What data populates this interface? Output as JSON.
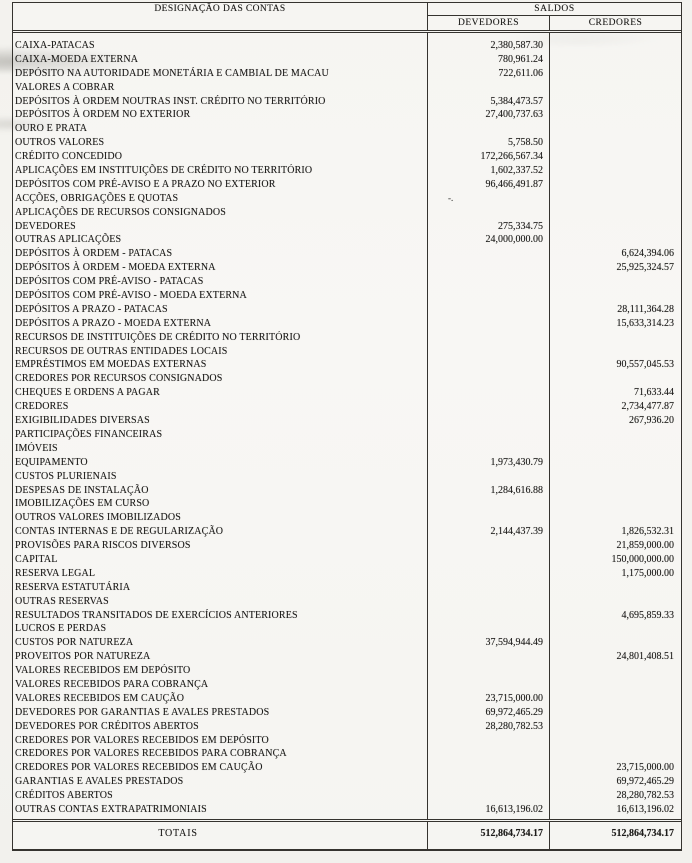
{
  "header": {
    "designation": "DESIGNAÇÃO DAS CONTAS",
    "saldos": "SALDOS",
    "devedores": "DEVEDORES",
    "credores": "CREDORES"
  },
  "rows": [
    {
      "name": "CAIXA-PATACAS",
      "dev": "2,380,587.30",
      "cred": ""
    },
    {
      "name": "CAIXA-MOEDA EXTERNA",
      "dev": "780,961.24",
      "cred": ""
    },
    {
      "name": "DEPÓSITO NA AUTORIDADE MONETÁRIA E CAMBIAL DE MACAU",
      "dev": "722,611.06",
      "cred": ""
    },
    {
      "name": "VALORES A COBRAR",
      "dev": "",
      "cred": ""
    },
    {
      "name": "DEPÓSITOS À ORDEM NOUTRAS INST. CRÉDITO NO TERRITÓRIO",
      "dev": "5,384,473.57",
      "cred": ""
    },
    {
      "name": "DEPÓSITOS À ORDEM NO EXTERIOR",
      "dev": "27,400,737.63",
      "cred": ""
    },
    {
      "name": "OURO E PRATA",
      "dev": "",
      "cred": ""
    },
    {
      "name": "OUTROS VALORES",
      "dev": "5,758.50",
      "cred": ""
    },
    {
      "name": "CRÉDITO CONCEDIDO",
      "dev": "172,266,567.34",
      "cred": ""
    },
    {
      "name": "APLICAÇÕES EM INSTITUIÇÕES DE CRÉDITO NO TERRITÓRIO",
      "dev": "1,602,337.52",
      "cred": ""
    },
    {
      "name": "DEPÓSITOS COM PRÉ-AVISO E A PRAZO NO EXTERIOR",
      "dev": "96,466,491.87",
      "cred": ""
    },
    {
      "name": "ACÇÕES, OBRIGAÇÕES E QUOTAS",
      "dev": "-.",
      "cred": ""
    },
    {
      "name": "APLICAÇÕES DE RECURSOS CONSIGNADOS",
      "dev": "",
      "cred": ""
    },
    {
      "name": "DEVEDORES",
      "dev": "275,334.75",
      "cred": ""
    },
    {
      "name": "OUTRAS APLICAÇÕES",
      "dev": "24,000,000.00",
      "cred": ""
    },
    {
      "name": "DEPÓSITOS À ORDEM - PATACAS",
      "dev": "",
      "cred": "6,624,394.06"
    },
    {
      "name": "DEPÓSITOS À ORDEM - MOEDA EXTERNA",
      "dev": "",
      "cred": "25,925,324.57"
    },
    {
      "name": "DEPÓSITOS COM PRÉ-AVISO - PATACAS",
      "dev": "",
      "cred": ""
    },
    {
      "name": "DEPÓSITOS COM PRÉ-AVISO - MOEDA EXTERNA",
      "dev": "",
      "cred": ""
    },
    {
      "name": "DEPÓSITOS A PRAZO - PATACAS",
      "dev": "",
      "cred": "28,111,364.28"
    },
    {
      "name": "DEPÓSITOS A PRAZO - MOEDA EXTERNA",
      "dev": "",
      "cred": "15,633,314.23"
    },
    {
      "name": "RECURSOS DE INSTITUIÇÕES DE CRÉDITO NO TERRITÓRIO",
      "dev": "",
      "cred": ""
    },
    {
      "name": "RECURSOS DE OUTRAS ENTIDADES LOCAIS",
      "dev": "",
      "cred": ""
    },
    {
      "name": "EMPRÉSTIMOS EM MOEDAS EXTERNAS",
      "dev": "",
      "cred": "90,557,045.53"
    },
    {
      "name": "CREDORES POR RECURSOS CONSIGNADOS",
      "dev": "",
      "cred": ""
    },
    {
      "name": "CHEQUES E ORDENS A PAGAR",
      "dev": "",
      "cred": "71,633.44"
    },
    {
      "name": "CREDORES",
      "dev": "",
      "cred": "2,734,477.87"
    },
    {
      "name": "EXIGIBILIDADES DIVERSAS",
      "dev": "",
      "cred": "267,936.20"
    },
    {
      "name": "PARTICIPAÇÕES FINANCEIRAS",
      "dev": "",
      "cred": ""
    },
    {
      "name": "IMÓVEIS",
      "dev": "",
      "cred": ""
    },
    {
      "name": "EQUIPAMENTO",
      "dev": "1,973,430.79",
      "cred": ""
    },
    {
      "name": "CUSTOS PLURIENAIS",
      "dev": "",
      "cred": ""
    },
    {
      "name": "DESPESAS DE INSTALAÇÃO",
      "dev": "1,284,616.88",
      "cred": ""
    },
    {
      "name": "IMOBILIZAÇÕES EM CURSO",
      "dev": "",
      "cred": ""
    },
    {
      "name": "OUTROS VALORES IMOBILIZADOS",
      "dev": "",
      "cred": ""
    },
    {
      "name": "CONTAS INTERNAS E DE REGULARIZAÇÃO",
      "dev": "2,144,437.39",
      "cred": "1,826,532.31"
    },
    {
      "name": "PROVISÕES PARA RISCOS DIVERSOS",
      "dev": "",
      "cred": "21,859,000.00"
    },
    {
      "name": "CAPITAL",
      "dev": "",
      "cred": "150,000,000.00"
    },
    {
      "name": "RESERVA LEGAL",
      "dev": "",
      "cred": "1,175,000.00"
    },
    {
      "name": "RESERVA ESTATUTÁRIA",
      "dev": "",
      "cred": ""
    },
    {
      "name": "OUTRAS RESERVAS",
      "dev": "",
      "cred": ""
    },
    {
      "name": "RESULTADOS TRANSITADOS DE EXERCÍCIOS ANTERIORES",
      "dev": "",
      "cred": "4,695,859.33"
    },
    {
      "name": "LUCROS E PERDAS",
      "dev": "",
      "cred": ""
    },
    {
      "name": "CUSTOS POR NATUREZA",
      "dev": "37,594,944.49",
      "cred": ""
    },
    {
      "name": "PROVEITOS POR NATUREZA",
      "dev": "",
      "cred": "24,801,408.51"
    },
    {
      "name": "VALORES RECEBIDOS EM DEPÓSITO",
      "dev": "",
      "cred": ""
    },
    {
      "name": "VALORES RECEBIDOS PARA COBRANÇA",
      "dev": "",
      "cred": ""
    },
    {
      "name": "VALORES RECEBIDOS EM CAUÇÃO",
      "dev": "23,715,000.00",
      "cred": ""
    },
    {
      "name": "DEVEDORES POR GARANTIAS E AVALES PRESTADOS",
      "dev": "69,972,465.29",
      "cred": ""
    },
    {
      "name": "DEVEDORES POR CRÉDITOS ABERTOS",
      "dev": "28,280,782.53",
      "cred": ""
    },
    {
      "name": "CREDORES POR VALORES RECEBIDOS EM DEPÓSITO",
      "dev": "",
      "cred": ""
    },
    {
      "name": "CREDORES POR VALORES RECEBIDOS PARA COBRANÇA",
      "dev": "",
      "cred": ""
    },
    {
      "name": "CREDORES POR VALORES RECEBIDOS EM CAUÇÃO",
      "dev": "",
      "cred": "23,715,000.00"
    },
    {
      "name": "GARANTIAS E AVALES PRESTADOS",
      "dev": "",
      "cred": "69,972,465.29"
    },
    {
      "name": "CRÉDITOS ABERTOS",
      "dev": "",
      "cred": "28,280,782.53"
    },
    {
      "name": "OUTRAS CONTAS EXTRAPATRIMONIAIS",
      "dev": "16,613,196.02",
      "cred": "16,613,196.02"
    }
  ],
  "totals": {
    "label": "TOTAIS",
    "dev": "512,864,734.17",
    "cred": "512,864,734.17"
  }
}
